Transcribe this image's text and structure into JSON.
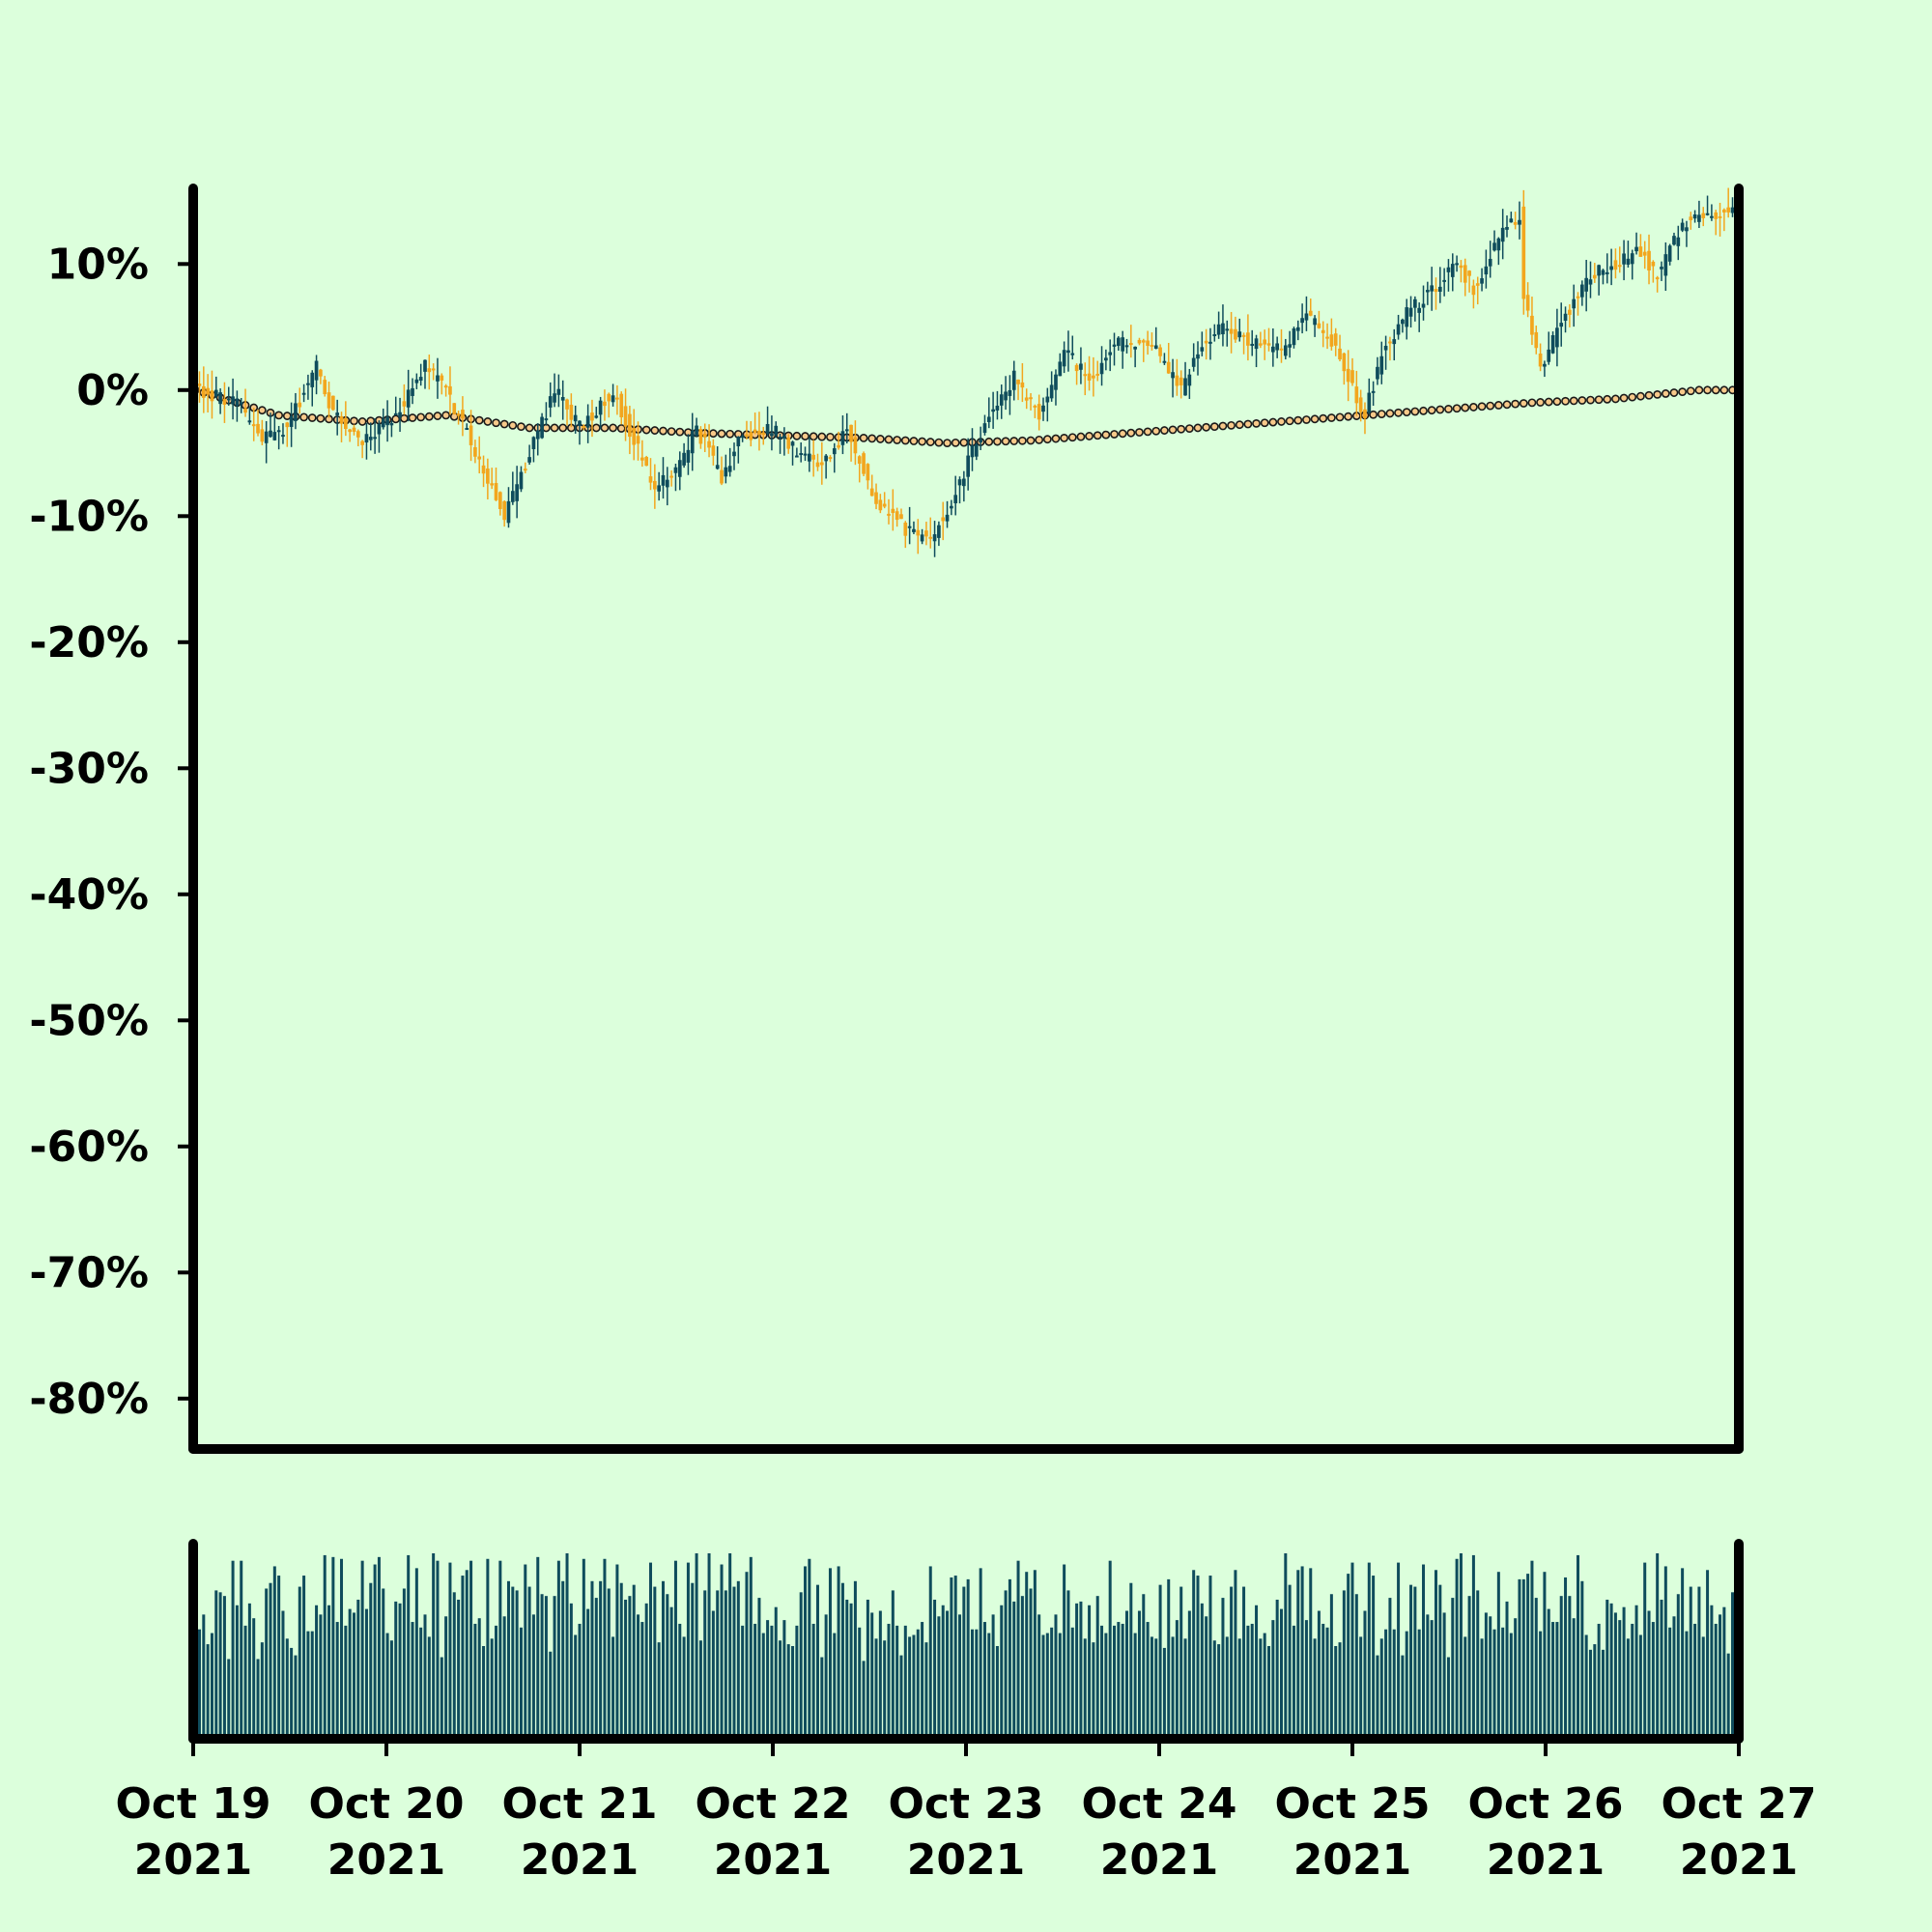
{
  "colors": {
    "background": "#dcffdc",
    "up": "#0f4c5c",
    "down": "#f2a61e",
    "volume": "#0f4c5c",
    "axis": "#000000",
    "ma_fill": "#f7c98a",
    "ma_stroke": "#1a1a1a"
  },
  "chart_data": {
    "type": "candlestick",
    "title": "",
    "xlabel": "",
    "ylabel": "",
    "y_unit": "%",
    "ylim": [
      -84,
      16
    ],
    "yticks": [
      10,
      0,
      -10,
      -20,
      -30,
      -40,
      -50,
      -60,
      -70,
      -80
    ],
    "ytick_labels": [
      "10%",
      "0%",
      "-10%",
      "-20%",
      "-30%",
      "-40%",
      "-50%",
      "-60%",
      "-70%",
      "-80%"
    ],
    "x_range": [
      "2021-10-19",
      "2021-10-27"
    ],
    "xticks": [
      "2021-10-19",
      "2021-10-20",
      "2021-10-21",
      "2021-10-22",
      "2021-10-23",
      "2021-10-24",
      "2021-10-25",
      "2021-10-26",
      "2021-10-27"
    ],
    "xtick_labels": [
      [
        "Oct 19",
        "2021"
      ],
      [
        "Oct 20",
        "2021"
      ],
      [
        "Oct 21",
        "2021"
      ],
      [
        "Oct 22",
        "2021"
      ],
      [
        "Oct 23",
        "2021"
      ],
      [
        "Oct 24",
        "2021"
      ],
      [
        "Oct 25",
        "2021"
      ],
      [
        "Oct 26",
        "2021"
      ],
      [
        "Oct 27",
        "2021"
      ]
    ],
    "interval_hours": 1,
    "start": "2021-10-19T00:00",
    "grid": false,
    "legend": "none",
    "close_path_keypoints": [
      [
        0,
        0
      ],
      [
        10,
        -1
      ],
      [
        16,
        -4
      ],
      [
        22,
        -3
      ],
      [
        29,
        2
      ],
      [
        33,
        -2
      ],
      [
        40,
        -4
      ],
      [
        48,
        -2
      ],
      [
        55,
        2
      ],
      [
        60,
        0
      ],
      [
        66,
        -4
      ],
      [
        74,
        -10
      ],
      [
        80,
        -5
      ],
      [
        86,
        0
      ],
      [
        92,
        -3
      ],
      [
        100,
        0
      ],
      [
        105,
        -4
      ],
      [
        110,
        -8
      ],
      [
        116,
        -6
      ],
      [
        120,
        -3
      ],
      [
        126,
        -7
      ],
      [
        130,
        -4
      ],
      [
        138,
        -3
      ],
      [
        144,
        -5
      ],
      [
        150,
        -6
      ],
      [
        156,
        -3
      ],
      [
        163,
        -9
      ],
      [
        170,
        -11
      ],
      [
        176,
        -12
      ],
      [
        182,
        -8
      ],
      [
        190,
        -2
      ],
      [
        196,
        1
      ],
      [
        202,
        -2
      ],
      [
        208,
        3
      ],
      [
        214,
        1
      ],
      [
        222,
        4
      ],
      [
        230,
        3
      ],
      [
        236,
        0
      ],
      [
        240,
        3
      ],
      [
        246,
        5
      ],
      [
        252,
        4
      ],
      [
        260,
        3
      ],
      [
        266,
        6
      ],
      [
        272,
        4
      ],
      [
        276,
        1
      ],
      [
        280,
        -2
      ],
      [
        284,
        3
      ],
      [
        290,
        6
      ],
      [
        296,
        8
      ],
      [
        302,
        10
      ],
      [
        306,
        8
      ],
      [
        312,
        12
      ],
      [
        317,
        14
      ],
      [
        318,
        7
      ],
      [
        322,
        2
      ],
      [
        328,
        6
      ],
      [
        334,
        9
      ],
      [
        340,
        10
      ],
      [
        346,
        11
      ],
      [
        350,
        9
      ],
      [
        356,
        13
      ],
      [
        360,
        14
      ]
    ],
    "ma_keypoints": [
      [
        0,
        0
      ],
      [
        20,
        -2
      ],
      [
        40,
        -2.5
      ],
      [
        60,
        -2
      ],
      [
        80,
        -3
      ],
      [
        100,
        -3
      ],
      [
        120,
        -3.4
      ],
      [
        140,
        -3.6
      ],
      [
        160,
        -3.8
      ],
      [
        180,
        -4.2
      ],
      [
        200,
        -4
      ],
      [
        220,
        -3.5
      ],
      [
        240,
        -3
      ],
      [
        260,
        -2.5
      ],
      [
        280,
        -2
      ],
      [
        300,
        -1.5
      ],
      [
        320,
        -1
      ],
      [
        340,
        -0.7
      ],
      [
        360,
        0
      ]
    ],
    "volume": {
      "type": "bar",
      "ylim": [
        0,
        100
      ],
      "values": [
        58,
        59,
        67,
        51,
        57,
        80,
        79,
        77,
        43,
        96,
        72,
        96,
        61,
        73,
        65,
        43,
        52,
        81,
        84,
        93,
        88,
        69,
        54,
        49,
        45,
        82,
        88,
        58,
        58,
        72,
        67,
        99,
        72,
        98,
        63,
        97,
        61,
        70,
        68,
        75,
        96,
        70,
        84,
        94,
        98,
        81,
        57,
        53,
        74,
        73,
        81,
        99,
        63,
        92,
        60,
        67,
        55,
        100,
        96,
        44,
        66,
        95,
        79,
        75,
        88,
        91,
        96,
        62,
        65,
        50,
        97,
        54,
        61,
        96,
        66,
        85,
        82,
        80,
        60,
        94,
        82,
        67,
        98,
        78,
        77,
        47,
        77,
        96,
        85,
        100,
        73,
        56,
        62,
        97,
        70,
        85,
        76,
        85,
        97,
        81,
        55,
        94,
        84,
        75,
        77,
        83,
        67,
        63,
        73,
        95,
        82,
        52,
        85,
        78,
        71,
        96,
        62,
        55,
        95,
        84,
        100,
        53,
        80,
        100,
        69,
        80,
        94,
        80,
        100,
        82,
        85,
        61,
        90,
        98,
        62,
        76,
        57,
        64,
        61,
        71,
        53,
        64,
        51,
        50,
        61,
        79,
        93,
        97,
        62,
        83,
        44,
        67,
        92,
        57,
        93,
        84,
        75,
        73,
        85,
        60,
        42,
        75,
        68,
        54,
        69,
        53,
        62,
        80,
        61,
        45,
        61,
        55,
        56,
        59,
        63,
        52,
        93,
        75,
        66,
        72,
        69,
        87,
        88,
        67,
        82,
        86,
        59,
        59,
        92,
        63,
        57,
        67,
        50,
        72,
        80,
        86,
        74,
        96,
        77,
        90,
        81,
        91,
        67,
        56,
        57,
        60,
        67,
        57,
        94,
        80,
        60,
        73,
        74,
        54,
        72,
        52,
        77,
        61,
        57,
        96,
        61,
        63,
        62,
        69,
        84,
        57,
        69,
        78,
        63,
        55,
        54,
        83,
        49,
        86,
        55,
        64,
        82,
        54,
        69,
        91,
        88,
        73,
        66,
        88,
        53,
        51,
        76,
        55,
        82,
        91,
        54,
        82,
        61,
        62,
        72,
        54,
        57,
        50,
        64,
        75,
        70,
        100,
        83,
        61,
        91,
        93,
        64,
        92,
        54,
        69,
        62,
        60,
        78,
        50,
        52,
        80,
        89,
        95,
        78,
        55,
        69,
        95,
        88,
        45,
        54,
        59,
        76,
        59,
        95,
        45,
        58,
        83,
        82,
        59,
        94,
        67,
        64,
        91,
        83,
        68,
        44,
        76,
        97,
        100,
        55,
        77,
        99,
        80,
        54,
        68,
        66,
        59,
        90,
        60,
        74,
        57,
        65,
        86,
        86,
        89,
        96,
        76,
        58,
        90,
        70,
        63,
        63,
        77,
        87,
        77,
        65,
        99,
        85,
        56,
        48,
        51,
        62,
        48,
        75,
        73,
        68,
        64,
        71,
        54,
        62,
        72,
        56,
        95,
        69,
        63,
        100,
        75,
        93,
        60,
        66,
        78,
        92,
        58,
        82,
        62,
        82,
        55,
        91,
        72,
        62,
        67,
        71,
        46,
        79,
        55
      ]
    }
  }
}
